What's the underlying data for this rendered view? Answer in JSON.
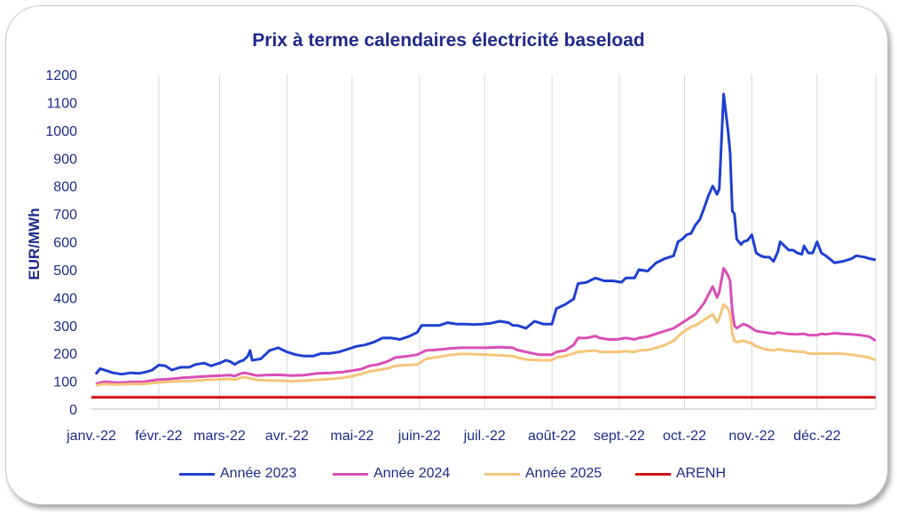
{
  "chart_data": {
    "type": "line",
    "title": "Prix à terme calendaires électricité baseload",
    "ylabel": "EUR/MWh",
    "xlabel": "",
    "ylim": [
      0,
      1200
    ],
    "yticks": [
      0,
      100,
      200,
      300,
      400,
      500,
      600,
      700,
      800,
      900,
      1000,
      1100,
      1200
    ],
    "xticks": [
      "janv.-22",
      "févr.-22",
      "mars-22",
      "avr.-22",
      "mai-22",
      "juin-22",
      "juil.-22",
      "août-22",
      "sept.-22",
      "oct.-22",
      "nov.-22",
      "déc.-22"
    ],
    "xlim_days": [
      0,
      361
    ],
    "grid": "vertical",
    "legend_position": "bottom",
    "series": [
      {
        "name": "Année 2023",
        "color": "#1f3fd0",
        "points": [
          [
            2,
            125
          ],
          [
            4,
            145
          ],
          [
            10,
            130
          ],
          [
            14,
            125
          ],
          [
            18,
            130
          ],
          [
            22,
            128
          ],
          [
            26,
            135
          ],
          [
            28,
            140
          ],
          [
            31,
            158
          ],
          [
            34,
            155
          ],
          [
            37,
            140
          ],
          [
            41,
            150
          ],
          [
            45,
            150
          ],
          [
            48,
            160
          ],
          [
            52,
            165
          ],
          [
            55,
            155
          ],
          [
            59,
            165
          ],
          [
            62,
            175
          ],
          [
            64,
            170
          ],
          [
            66,
            160
          ],
          [
            68,
            170
          ],
          [
            70,
            175
          ],
          [
            72,
            190
          ],
          [
            73,
            210
          ],
          [
            74,
            175
          ],
          [
            78,
            180
          ],
          [
            82,
            210
          ],
          [
            86,
            220
          ],
          [
            90,
            205
          ],
          [
            94,
            195
          ],
          [
            98,
            190
          ],
          [
            102,
            190
          ],
          [
            106,
            200
          ],
          [
            110,
            200
          ],
          [
            114,
            205
          ],
          [
            118,
            215
          ],
          [
            122,
            225
          ],
          [
            126,
            230
          ],
          [
            130,
            240
          ],
          [
            134,
            255
          ],
          [
            138,
            255
          ],
          [
            142,
            250
          ],
          [
            146,
            260
          ],
          [
            150,
            275
          ],
          [
            152,
            300
          ],
          [
            156,
            300
          ],
          [
            160,
            300
          ],
          [
            164,
            310
          ],
          [
            168,
            305
          ],
          [
            172,
            305
          ],
          [
            176,
            303
          ],
          [
            180,
            305
          ],
          [
            184,
            308
          ],
          [
            188,
            315
          ],
          [
            192,
            310
          ],
          [
            194,
            300
          ],
          [
            196,
            300
          ],
          [
            198,
            295
          ],
          [
            200,
            290
          ],
          [
            204,
            315
          ],
          [
            208,
            305
          ],
          [
            212,
            305
          ],
          [
            214,
            360
          ],
          [
            218,
            375
          ],
          [
            222,
            395
          ],
          [
            224,
            450
          ],
          [
            228,
            455
          ],
          [
            232,
            470
          ],
          [
            236,
            460
          ],
          [
            240,
            460
          ],
          [
            244,
            455
          ],
          [
            246,
            470
          ],
          [
            250,
            470
          ],
          [
            252,
            500
          ],
          [
            256,
            495
          ],
          [
            260,
            525
          ],
          [
            264,
            540
          ],
          [
            268,
            550
          ],
          [
            270,
            600
          ],
          [
            272,
            610
          ],
          [
            274,
            625
          ],
          [
            276,
            630
          ],
          [
            278,
            660
          ],
          [
            280,
            680
          ],
          [
            282,
            720
          ],
          [
            284,
            765
          ],
          [
            286,
            800
          ],
          [
            288,
            770
          ],
          [
            289,
            790
          ],
          [
            291,
            1130
          ],
          [
            293,
            1000
          ],
          [
            294,
            920
          ],
          [
            295,
            710
          ],
          [
            296,
            700
          ],
          [
            297,
            610
          ],
          [
            299,
            590
          ],
          [
            300,
            600
          ],
          [
            302,
            605
          ],
          [
            304,
            625
          ],
          [
            306,
            560
          ],
          [
            308,
            550
          ],
          [
            310,
            545
          ],
          [
            312,
            545
          ],
          [
            314,
            530
          ],
          [
            316,
            565
          ],
          [
            317,
            600
          ],
          [
            319,
            585
          ],
          [
            321,
            570
          ],
          [
            323,
            570
          ],
          [
            325,
            560
          ],
          [
            327,
            555
          ],
          [
            328,
            585
          ],
          [
            330,
            560
          ],
          [
            332,
            560
          ],
          [
            334,
            600
          ],
          [
            336,
            560
          ],
          [
            338,
            550
          ],
          [
            342,
            525
          ],
          [
            346,
            530
          ],
          [
            350,
            540
          ],
          [
            352,
            550
          ],
          [
            356,
            545
          ],
          [
            358,
            540
          ],
          [
            361,
            535
          ]
        ]
      },
      {
        "name": "Année 2024",
        "color": "#d94fb5",
        "points": [
          [
            2,
            90
          ],
          [
            6,
            98
          ],
          [
            12,
            95
          ],
          [
            18,
            97
          ],
          [
            24,
            98
          ],
          [
            30,
            105
          ],
          [
            36,
            108
          ],
          [
            42,
            112
          ],
          [
            48,
            115
          ],
          [
            54,
            118
          ],
          [
            60,
            120
          ],
          [
            64,
            122
          ],
          [
            66,
            118
          ],
          [
            68,
            125
          ],
          [
            70,
            130
          ],
          [
            72,
            128
          ],
          [
            76,
            120
          ],
          [
            80,
            122
          ],
          [
            86,
            123
          ],
          [
            92,
            120
          ],
          [
            98,
            122
          ],
          [
            104,
            128
          ],
          [
            110,
            130
          ],
          [
            116,
            133
          ],
          [
            120,
            138
          ],
          [
            124,
            143
          ],
          [
            128,
            155
          ],
          [
            132,
            160
          ],
          [
            136,
            170
          ],
          [
            140,
            185
          ],
          [
            146,
            190
          ],
          [
            150,
            195
          ],
          [
            154,
            210
          ],
          [
            158,
            212
          ],
          [
            162,
            215
          ],
          [
            166,
            218
          ],
          [
            170,
            220
          ],
          [
            176,
            220
          ],
          [
            182,
            220
          ],
          [
            188,
            222
          ],
          [
            194,
            220
          ],
          [
            196,
            212
          ],
          [
            200,
            205
          ],
          [
            206,
            195
          ],
          [
            212,
            195
          ],
          [
            214,
            205
          ],
          [
            218,
            210
          ],
          [
            222,
            230
          ],
          [
            224,
            255
          ],
          [
            228,
            255
          ],
          [
            232,
            262
          ],
          [
            234,
            255
          ],
          [
            238,
            250
          ],
          [
            242,
            250
          ],
          [
            246,
            255
          ],
          [
            250,
            250
          ],
          [
            252,
            255
          ],
          [
            256,
            260
          ],
          [
            260,
            270
          ],
          [
            264,
            280
          ],
          [
            268,
            290
          ],
          [
            270,
            300
          ],
          [
            272,
            310
          ],
          [
            274,
            320
          ],
          [
            276,
            330
          ],
          [
            278,
            340
          ],
          [
            280,
            360
          ],
          [
            282,
            380
          ],
          [
            284,
            410
          ],
          [
            286,
            440
          ],
          [
            288,
            400
          ],
          [
            289,
            420
          ],
          [
            291,
            505
          ],
          [
            293,
            480
          ],
          [
            294,
            460
          ],
          [
            295,
            350
          ],
          [
            296,
            300
          ],
          [
            297,
            290
          ],
          [
            300,
            305
          ],
          [
            302,
            300
          ],
          [
            304,
            290
          ],
          [
            306,
            280
          ],
          [
            310,
            275
          ],
          [
            314,
            270
          ],
          [
            316,
            275
          ],
          [
            320,
            270
          ],
          [
            324,
            268
          ],
          [
            328,
            270
          ],
          [
            330,
            265
          ],
          [
            334,
            265
          ],
          [
            336,
            270
          ],
          [
            338,
            268
          ],
          [
            342,
            272
          ],
          [
            346,
            270
          ],
          [
            350,
            268
          ],
          [
            354,
            265
          ],
          [
            358,
            260
          ],
          [
            361,
            245
          ]
        ]
      },
      {
        "name": "Année 2025",
        "color": "#f5c57a",
        "points": [
          [
            2,
            85
          ],
          [
            6,
            90
          ],
          [
            12,
            88
          ],
          [
            18,
            90
          ],
          [
            24,
            90
          ],
          [
            30,
            95
          ],
          [
            36,
            98
          ],
          [
            42,
            100
          ],
          [
            48,
            102
          ],
          [
            54,
            105
          ],
          [
            60,
            107
          ],
          [
            64,
            108
          ],
          [
            66,
            105
          ],
          [
            68,
            110
          ],
          [
            70,
            115
          ],
          [
            72,
            112
          ],
          [
            76,
            105
          ],
          [
            80,
            103
          ],
          [
            86,
            102
          ],
          [
            92,
            100
          ],
          [
            98,
            102
          ],
          [
            104,
            105
          ],
          [
            110,
            108
          ],
          [
            116,
            112
          ],
          [
            120,
            118
          ],
          [
            124,
            125
          ],
          [
            128,
            135
          ],
          [
            132,
            140
          ],
          [
            136,
            145
          ],
          [
            140,
            155
          ],
          [
            146,
            158
          ],
          [
            150,
            160
          ],
          [
            154,
            180
          ],
          [
            158,
            185
          ],
          [
            162,
            190
          ],
          [
            166,
            195
          ],
          [
            170,
            198
          ],
          [
            176,
            197
          ],
          [
            182,
            195
          ],
          [
            188,
            193
          ],
          [
            194,
            190
          ],
          [
            196,
            185
          ],
          [
            200,
            178
          ],
          [
            206,
            175
          ],
          [
            212,
            175
          ],
          [
            214,
            185
          ],
          [
            218,
            190
          ],
          [
            222,
            200
          ],
          [
            224,
            205
          ],
          [
            228,
            208
          ],
          [
            232,
            210
          ],
          [
            234,
            205
          ],
          [
            238,
            205
          ],
          [
            242,
            205
          ],
          [
            246,
            208
          ],
          [
            250,
            205
          ],
          [
            252,
            210
          ],
          [
            256,
            212
          ],
          [
            260,
            220
          ],
          [
            264,
            230
          ],
          [
            268,
            245
          ],
          [
            270,
            260
          ],
          [
            272,
            275
          ],
          [
            274,
            285
          ],
          [
            276,
            295
          ],
          [
            278,
            300
          ],
          [
            280,
            310
          ],
          [
            282,
            320
          ],
          [
            284,
            330
          ],
          [
            286,
            340
          ],
          [
            288,
            310
          ],
          [
            289,
            325
          ],
          [
            291,
            375
          ],
          [
            293,
            360
          ],
          [
            294,
            340
          ],
          [
            295,
            270
          ],
          [
            296,
            245
          ],
          [
            297,
            240
          ],
          [
            300,
            245
          ],
          [
            302,
            240
          ],
          [
            304,
            235
          ],
          [
            306,
            225
          ],
          [
            310,
            215
          ],
          [
            314,
            210
          ],
          [
            316,
            215
          ],
          [
            320,
            210
          ],
          [
            324,
            207
          ],
          [
            328,
            205
          ],
          [
            330,
            200
          ],
          [
            334,
            198
          ],
          [
            336,
            200
          ],
          [
            338,
            198
          ],
          [
            342,
            200
          ],
          [
            346,
            198
          ],
          [
            350,
            195
          ],
          [
            354,
            190
          ],
          [
            358,
            185
          ],
          [
            361,
            175
          ]
        ]
      },
      {
        "name": "ARENH",
        "color": "#d01010",
        "points": [
          [
            0,
            42
          ],
          [
            361,
            42
          ]
        ]
      }
    ]
  }
}
